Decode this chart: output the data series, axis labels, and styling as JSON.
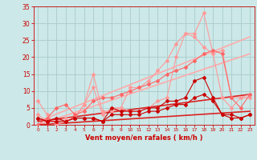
{
  "background_color": "#cce8e8",
  "grid_color": "#aacccc",
  "xlabel": "Vent moyen/en rafales ( km/h )",
  "xlabel_color": "#cc0000",
  "tick_color": "#cc0000",
  "xlim": [
    -0.5,
    23.5
  ],
  "ylim": [
    0,
    35
  ],
  "yticks": [
    0,
    5,
    10,
    15,
    20,
    25,
    30,
    35
  ],
  "xticks": [
    0,
    1,
    2,
    3,
    4,
    5,
    6,
    7,
    8,
    9,
    10,
    11,
    12,
    13,
    14,
    15,
    16,
    17,
    18,
    19,
    20,
    21,
    22,
    23
  ],
  "lines": [
    {
      "x": [
        0,
        1,
        2,
        3,
        4,
        5,
        6,
        7,
        8,
        9,
        10,
        11,
        12,
        13,
        14,
        15,
        16,
        17,
        18,
        19,
        20,
        21,
        22,
        23
      ],
      "y": [
        7,
        3,
        0,
        1,
        2,
        6,
        11,
        3,
        5,
        5,
        4,
        4,
        5,
        7,
        8,
        20,
        27,
        27,
        33,
        21,
        8,
        5,
        8,
        8
      ],
      "color": "#ff9999",
      "lw": 0.8,
      "marker": "D",
      "ms": 2.0,
      "zorder": 3
    },
    {
      "x": [
        0,
        1,
        2,
        3,
        4,
        5,
        6,
        7,
        8,
        9,
        10,
        11,
        12,
        13,
        14,
        15,
        16,
        17,
        18,
        19,
        20,
        21,
        22,
        23
      ],
      "y": [
        3,
        1,
        1,
        2,
        2,
        6,
        15,
        4,
        4,
        5,
        11,
        11,
        13,
        16,
        19,
        24,
        27,
        26,
        23,
        21,
        22,
        8,
        8,
        9
      ],
      "color": "#ff9999",
      "lw": 0.8,
      "marker": "D",
      "ms": 2.0,
      "zorder": 3
    },
    {
      "x": [
        0,
        1,
        2,
        3,
        4,
        5,
        6,
        7,
        8,
        9,
        10,
        11,
        12,
        13,
        14,
        15,
        16,
        17,
        18,
        19,
        20,
        21,
        22,
        23
      ],
      "y": [
        0,
        2,
        5,
        6,
        3,
        4,
        7,
        8,
        8,
        9,
        10,
        11,
        12,
        13,
        15,
        16,
        17,
        19,
        21,
        22,
        21,
        8,
        5,
        9
      ],
      "color": "#ff6666",
      "lw": 0.8,
      "marker": "D",
      "ms": 2.0,
      "zorder": 3
    },
    {
      "x": [
        0,
        1,
        2,
        3,
        4,
        5,
        6,
        7,
        8,
        9,
        10,
        11,
        12,
        13,
        14,
        15,
        16,
        17,
        18,
        19,
        20,
        21,
        22,
        23
      ],
      "y": [
        2,
        1,
        2,
        1,
        2,
        2,
        2,
        1,
        5,
        4,
        4,
        4,
        5,
        5,
        7,
        7,
        8,
        13,
        14,
        8,
        3,
        3,
        2,
        3
      ],
      "color": "#cc0000",
      "lw": 0.8,
      "marker": "D",
      "ms": 2.0,
      "zorder": 4
    },
    {
      "x": [
        0,
        1,
        2,
        3,
        4,
        5,
        6,
        7,
        8,
        9,
        10,
        11,
        12,
        13,
        14,
        15,
        16,
        17,
        18,
        19,
        20,
        21,
        22,
        23
      ],
      "y": [
        2,
        1,
        1,
        1,
        2,
        2,
        2,
        1,
        3,
        3,
        3,
        3,
        4,
        4,
        5,
        6,
        6,
        8,
        9,
        7,
        3,
        2,
        2,
        3
      ],
      "color": "#cc0000",
      "lw": 0.8,
      "marker": "D",
      "ms": 2.0,
      "zorder": 4
    },
    {
      "x": [
        0,
        23
      ],
      "y": [
        1,
        26
      ],
      "color": "#ffaaaa",
      "lw": 1.2,
      "marker": null,
      "ms": 0,
      "zorder": 2
    },
    {
      "x": [
        0,
        23
      ],
      "y": [
        0,
        21
      ],
      "color": "#ffaaaa",
      "lw": 1.2,
      "marker": null,
      "ms": 0,
      "zorder": 2
    },
    {
      "x": [
        0,
        23
      ],
      "y": [
        1,
        9
      ],
      "color": "#dd2222",
      "lw": 1.2,
      "marker": null,
      "ms": 0,
      "zorder": 2
    },
    {
      "x": [
        0,
        23
      ],
      "y": [
        0,
        4
      ],
      "color": "#dd2222",
      "lw": 1.2,
      "marker": null,
      "ms": 0,
      "zorder": 2
    }
  ]
}
